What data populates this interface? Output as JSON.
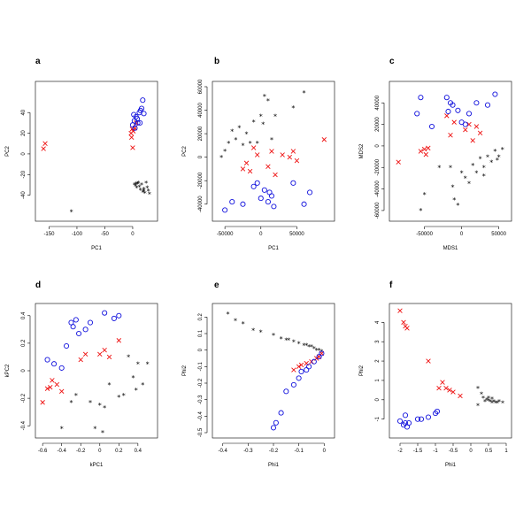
{
  "colors": {
    "black": "#000000",
    "red": "#ee1111",
    "blue": "#1111dd"
  },
  "markers": {
    "star": "*",
    "cross": "×",
    "circle": "o"
  },
  "chart_data": [
    {
      "panel": "a",
      "type": "scatter",
      "xlabel": "PC1",
      "ylabel": "PC2",
      "xlim": [
        -165,
        35
      ],
      "ylim": [
        -60,
        65
      ],
      "xticks": [
        -150,
        -100,
        -50,
        0
      ],
      "yticks": [
        -40,
        -20,
        0,
        20,
        40
      ],
      "series": [
        {
          "name": "black",
          "marker": "star",
          "color": "black",
          "x": [
            -110,
            5,
            9,
            12,
            16,
            20,
            24,
            28,
            3,
            7,
            14,
            18,
            22,
            26,
            30,
            10,
            20,
            6
          ],
          "y": [
            -56,
            -31,
            -29,
            -32,
            -30,
            -34,
            -28,
            -36,
            -30,
            -33,
            -35,
            -37,
            -38,
            -33,
            -39,
            -28,
            -36,
            -29
          ]
        },
        {
          "name": "red",
          "marker": "cross",
          "color": "red",
          "x": [
            -160,
            -157,
            -3,
            -1,
            1,
            4,
            0,
            6,
            -2
          ],
          "y": [
            5,
            10,
            20,
            24,
            22,
            25,
            6,
            30,
            16
          ]
        },
        {
          "name": "blue",
          "marker": "circle",
          "color": "blue",
          "x": [
            0,
            3,
            6,
            9,
            12,
            14,
            16,
            18,
            4,
            8,
            13,
            20,
            2
          ],
          "y": [
            28,
            32,
            36,
            30,
            40,
            42,
            44,
            52,
            25,
            34,
            30,
            39,
            38
          ]
        }
      ]
    },
    {
      "panel": "b",
      "type": "scatter",
      "xlabel": "PC1",
      "ylabel": "PC2",
      "xlim": [
        -60000,
        95000
      ],
      "ylim": [
        -50000,
        60000
      ],
      "xticks": [
        -50000,
        0,
        50000
      ],
      "yticks": [
        -40000,
        -20000,
        0,
        20000,
        40000,
        60000
      ],
      "series": [
        {
          "name": "black",
          "marker": "star",
          "color": "black",
          "x": [
            5000,
            60000,
            45000,
            -40000,
            -30000,
            -20000,
            -10000,
            0,
            3000,
            -45000,
            -35000,
            -25000,
            -15000,
            -5000,
            10000,
            -50000,
            -55000,
            15000,
            20000
          ],
          "y": [
            52000,
            55000,
            42000,
            22000,
            25000,
            20000,
            30000,
            35000,
            28000,
            12000,
            15000,
            10000,
            12000,
            12000,
            48000,
            5000,
            0,
            15000,
            35000
          ]
        },
        {
          "name": "red",
          "marker": "cross",
          "color": "red",
          "x": [
            -25000,
            -20000,
            -15000,
            -10000,
            10000,
            15000,
            40000,
            45000,
            50000,
            88000,
            -5000,
            30000,
            20000
          ],
          "y": [
            -10000,
            -5000,
            -12000,
            8000,
            -8000,
            5000,
            0,
            5000,
            -3000,
            15000,
            2000,
            2000,
            -15000
          ]
        },
        {
          "name": "blue",
          "marker": "circle",
          "color": "blue",
          "x": [
            -50000,
            -40000,
            -25000,
            -10000,
            0,
            5000,
            10000,
            15000,
            18000,
            45000,
            60000,
            68000,
            -5000,
            12000
          ],
          "y": [
            -45000,
            -38000,
            -40000,
            -25000,
            -35000,
            -28000,
            -38000,
            -33000,
            -42000,
            -22000,
            -40000,
            -30000,
            -22000,
            -30000
          ]
        }
      ]
    },
    {
      "panel": "c",
      "type": "scatter",
      "xlabel": "MDS1",
      "ylabel": "MDS2",
      "xlim": [
        -90000,
        60000
      ],
      "ylim": [
        -65000,
        55000
      ],
      "xticks": [
        -50000,
        0,
        50000
      ],
      "yticks": [
        -60000,
        -40000,
        -20000,
        0,
        20000,
        40000
      ],
      "series": [
        {
          "name": "black",
          "marker": "star",
          "color": "black",
          "x": [
            -50000,
            -55000,
            -10000,
            -5000,
            5000,
            10000,
            20000,
            30000,
            35000,
            40000,
            45000,
            50000,
            55000,
            0,
            15000,
            25000,
            -30000,
            -15000,
            -12000,
            30000,
            48000
          ],
          "y": [
            -45000,
            -60000,
            -50000,
            -55000,
            -30000,
            -35000,
            -25000,
            -20000,
            -10000,
            -15000,
            -5000,
            -10000,
            -3000,
            -25000,
            -18000,
            -12000,
            -20000,
            -20000,
            -38000,
            -28000,
            -13000
          ]
        },
        {
          "name": "red",
          "marker": "cross",
          "color": "red",
          "x": [
            -85000,
            -55000,
            -50000,
            -45000,
            -15000,
            -10000,
            5000,
            15000,
            25000,
            -20000,
            10000,
            20000,
            -48000
          ],
          "y": [
            -15000,
            -5000,
            -3000,
            -2000,
            10000,
            22000,
            15000,
            5000,
            12000,
            28000,
            20000,
            18000,
            -8000
          ]
        },
        {
          "name": "blue",
          "marker": "circle",
          "color": "blue",
          "x": [
            -60000,
            -55000,
            -40000,
            -20000,
            -15000,
            -12000,
            -5000,
            5000,
            10000,
            20000,
            35000,
            45000,
            -18000,
            0
          ],
          "y": [
            30000,
            45000,
            18000,
            45000,
            40000,
            38000,
            33000,
            20000,
            30000,
            40000,
            38000,
            48000,
            32000,
            22000
          ]
        }
      ]
    },
    {
      "panel": "d",
      "type": "scatter",
      "xlabel": "kPC1",
      "ylabel": "kPC2",
      "xlim": [
        -0.62,
        0.55
      ],
      "ylim": [
        -0.45,
        0.45
      ],
      "xticks": [
        -0.6,
        -0.4,
        -0.2,
        0.0,
        0.2,
        0.4
      ],
      "yticks": [
        -0.4,
        -0.2,
        0.0,
        0.2,
        0.4
      ],
      "series": [
        {
          "name": "black",
          "marker": "star",
          "color": "black",
          "x": [
            -0.4,
            -0.3,
            -0.1,
            0.0,
            0.05,
            0.1,
            0.2,
            0.25,
            0.3,
            0.35,
            0.4,
            0.45,
            0.5,
            -0.05,
            0.38,
            0.03,
            -0.25
          ],
          "y": [
            -0.42,
            -0.23,
            -0.23,
            -0.25,
            -0.27,
            -0.1,
            -0.19,
            -0.18,
            0.1,
            -0.05,
            0.05,
            -0.1,
            0.05,
            -0.42,
            -0.14,
            -0.45,
            -0.18
          ]
        },
        {
          "name": "red",
          "marker": "cross",
          "color": "red",
          "x": [
            -0.6,
            -0.55,
            -0.5,
            -0.45,
            -0.4,
            -0.2,
            -0.15,
            0.0,
            0.05,
            0.1,
            0.2,
            -0.52
          ],
          "y": [
            -0.23,
            -0.13,
            -0.07,
            -0.1,
            -0.15,
            0.08,
            0.12,
            0.12,
            0.15,
            0.1,
            0.22,
            -0.12
          ]
        },
        {
          "name": "blue",
          "marker": "circle",
          "color": "blue",
          "x": [
            -0.55,
            -0.48,
            -0.4,
            -0.3,
            -0.25,
            -0.22,
            -0.15,
            -0.1,
            0.05,
            0.15,
            0.2,
            -0.28,
            -0.35
          ],
          "y": [
            0.08,
            0.05,
            0.02,
            0.35,
            0.37,
            0.27,
            0.3,
            0.35,
            0.42,
            0.38,
            0.4,
            0.32,
            0.18
          ]
        }
      ]
    },
    {
      "panel": "e",
      "type": "scatter",
      "xlabel": "Phi1",
      "ylabel": "Phi2",
      "xlim": [
        -0.42,
        0.02
      ],
      "ylim": [
        -0.5,
        0.25
      ],
      "xticks": [
        -0.4,
        -0.3,
        -0.2,
        -0.1,
        0.0
      ],
      "yticks": [
        -0.5,
        -0.4,
        -0.3,
        -0.2,
        -0.1,
        0.0,
        0.1,
        0.2
      ],
      "series": [
        {
          "name": "black",
          "marker": "star",
          "color": "black",
          "x": [
            -0.38,
            -0.35,
            -0.32,
            -0.28,
            -0.25,
            -0.2,
            -0.17,
            -0.14,
            -0.12,
            -0.1,
            -0.08,
            -0.06,
            -0.04,
            -0.02,
            -0.01,
            -0.03,
            -0.05,
            -0.07,
            -0.15
          ],
          "y": [
            0.22,
            0.18,
            0.16,
            0.12,
            0.11,
            0.09,
            0.07,
            0.06,
            0.05,
            0.04,
            0.03,
            0.02,
            0.01,
            0.0,
            -0.01,
            0.0,
            0.02,
            0.03,
            0.06
          ]
        },
        {
          "name": "red",
          "marker": "cross",
          "color": "red",
          "x": [
            -0.12,
            -0.1,
            -0.09,
            -0.07,
            -0.05,
            -0.03,
            -0.02,
            -0.01
          ],
          "y": [
            -0.12,
            -0.1,
            -0.09,
            -0.08,
            -0.07,
            -0.05,
            -0.04,
            -0.02
          ]
        },
        {
          "name": "blue",
          "marker": "circle",
          "color": "blue",
          "x": [
            -0.2,
            -0.19,
            -0.17,
            -0.15,
            -0.12,
            -0.1,
            -0.09,
            -0.07,
            -0.06,
            -0.04,
            -0.02,
            -0.01
          ],
          "y": [
            -0.47,
            -0.44,
            -0.38,
            -0.25,
            -0.21,
            -0.17,
            -0.13,
            -0.12,
            -0.1,
            -0.07,
            -0.04,
            -0.02
          ]
        }
      ]
    },
    {
      "panel": "f",
      "type": "scatter",
      "xlabel": "Phi1",
      "ylabel": "Phi2",
      "xlim": [
        -2.15,
        1.0
      ],
      "ylim": [
        -1.7,
        4.7
      ],
      "xticks": [
        -2.0,
        -1.5,
        -1.0,
        -0.5,
        0.0,
        0.5,
        1.0
      ],
      "yticks": [
        -1,
        0,
        1,
        2,
        3,
        4
      ],
      "series": [
        {
          "name": "black",
          "marker": "star",
          "color": "black",
          "x": [
            0.2,
            0.3,
            0.35,
            0.4,
            0.45,
            0.5,
            0.55,
            0.6,
            0.65,
            0.7,
            0.75,
            0.8,
            0.9,
            0.5,
            0.6,
            0.2
          ],
          "y": [
            0.6,
            0.3,
            0.1,
            -0.1,
            0.0,
            -0.05,
            -0.1,
            -0.15,
            -0.1,
            -0.15,
            -0.15,
            -0.1,
            -0.15,
            0.1,
            0.05,
            -0.3
          ]
        },
        {
          "name": "red",
          "marker": "cross",
          "color": "red",
          "x": [
            -2.0,
            -1.9,
            -1.85,
            -1.8,
            -1.2,
            -0.8,
            -0.7,
            -0.6,
            -0.5,
            -0.3,
            -0.9
          ],
          "y": [
            4.6,
            4.0,
            3.8,
            3.7,
            2.0,
            0.9,
            0.6,
            0.5,
            0.4,
            0.2,
            0.6
          ]
        },
        {
          "name": "blue",
          "marker": "circle",
          "color": "blue",
          "x": [
            -2.0,
            -1.9,
            -1.85,
            -1.8,
            -1.75,
            -1.5,
            -1.4,
            -1.2,
            -1.0,
            -0.95,
            -1.85
          ],
          "y": [
            -1.1,
            -1.3,
            -1.2,
            -1.4,
            -1.2,
            -1.0,
            -1.0,
            -0.9,
            -0.7,
            -0.6,
            -0.8
          ]
        }
      ]
    }
  ]
}
